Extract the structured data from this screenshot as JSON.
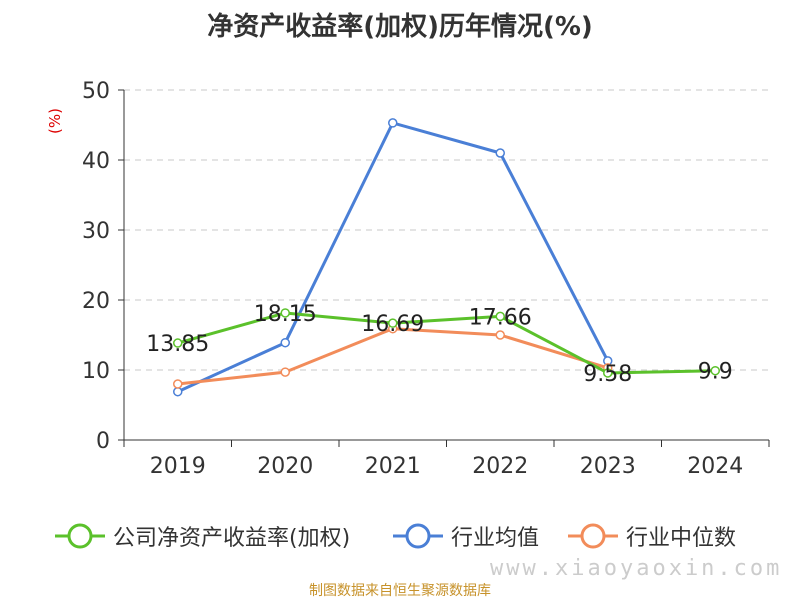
{
  "title": "净资产收益率(加权)历年情况(%)",
  "unit_label": "(%)",
  "source": "制图数据来自恒生聚源数据库",
  "watermark": "www.xiaoyaoxin.com",
  "chart_data": {
    "type": "line",
    "title": "净资产收益率(加权)历年情况(%)",
    "ylabel": "(%)",
    "xlabel": "",
    "categories": [
      "2019",
      "2020",
      "2021",
      "2022",
      "2023",
      "2024"
    ],
    "ylim": [
      0,
      50
    ],
    "yticks": [
      0,
      10,
      20,
      30,
      40,
      50
    ],
    "grid": true,
    "legend_position": "bottom",
    "series": [
      {
        "name": "公司净资产收益率(加权)",
        "color": "#5bc12b",
        "values": [
          13.85,
          18.15,
          16.69,
          17.66,
          9.58,
          9.9
        ],
        "labels": [
          "13.85",
          "18.15",
          "16.69",
          "17.66",
          "9.58",
          "9.9"
        ]
      },
      {
        "name": "行业均值",
        "color": "#4a7fd6",
        "values": [
          6.9,
          13.9,
          45.3,
          41.0,
          11.3,
          null
        ]
      },
      {
        "name": "行业中位数",
        "color": "#f28c5a",
        "values": [
          8.0,
          9.7,
          15.9,
          15.0,
          10.3,
          null
        ]
      }
    ]
  }
}
